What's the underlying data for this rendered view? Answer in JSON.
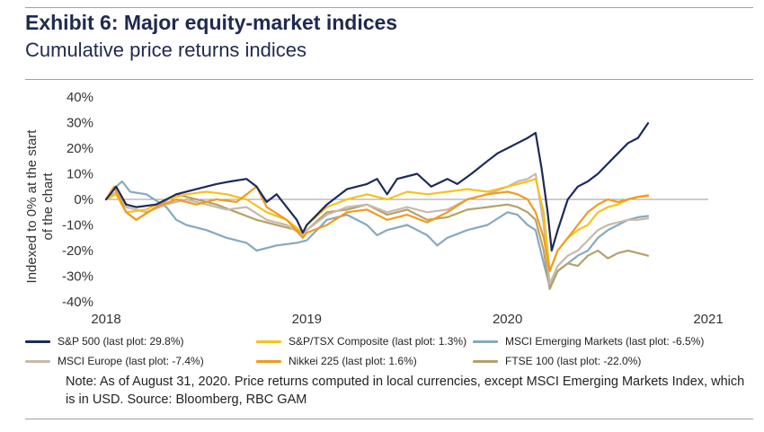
{
  "title": "Exhibit 6: Major equity-market indices",
  "subtitle": "Cumulative price returns indices",
  "note": "Note: As of August 31, 2020. Price returns computed in local currencies, except MSCI Emerging Markets Index, which is in USD. Source: Bloomberg, RBC GAM",
  "chart_data": {
    "type": "line",
    "title": "Exhibit 6: Major equity-market indices",
    "subtitle": "Cumulative price returns indices",
    "ylabel": "Indexed to 0% at the start of the chart",
    "xlabel": "",
    "x_ticks": [
      "2018",
      "2019",
      "2020",
      "2021"
    ],
    "y_ticks": [
      "40%",
      "30%",
      "20%",
      "10%",
      "0%",
      "-10%",
      "-20%",
      "-30%",
      "-40%"
    ],
    "xlim": [
      2018.0,
      2021.0
    ],
    "ylim": [
      -40,
      40
    ],
    "grid": false,
    "legend_position": "bottom",
    "series": [
      {
        "name": "S&P 500 (last plot: 29.8%)",
        "color": "#1d2a5c",
        "points": [
          [
            2018.0,
            0
          ],
          [
            2018.05,
            5
          ],
          [
            2018.1,
            -2
          ],
          [
            2018.15,
            -3
          ],
          [
            2018.25,
            -2
          ],
          [
            2018.35,
            2
          ],
          [
            2018.45,
            4
          ],
          [
            2018.55,
            6
          ],
          [
            2018.62,
            7
          ],
          [
            2018.7,
            8
          ],
          [
            2018.75,
            5
          ],
          [
            2018.8,
            -1
          ],
          [
            2018.85,
            2
          ],
          [
            2018.9,
            -3
          ],
          [
            2018.95,
            -8
          ],
          [
            2018.98,
            -13
          ],
          [
            2019.0,
            -10
          ],
          [
            2019.1,
            -2
          ],
          [
            2019.2,
            4
          ],
          [
            2019.3,
            6
          ],
          [
            2019.35,
            8
          ],
          [
            2019.4,
            2
          ],
          [
            2019.45,
            8
          ],
          [
            2019.55,
            10
          ],
          [
            2019.62,
            5
          ],
          [
            2019.7,
            8
          ],
          [
            2019.75,
            6
          ],
          [
            2019.82,
            10
          ],
          [
            2019.9,
            15
          ],
          [
            2019.95,
            18
          ],
          [
            2020.0,
            20
          ],
          [
            2020.05,
            22
          ],
          [
            2020.1,
            24
          ],
          [
            2020.14,
            26
          ],
          [
            2020.17,
            12
          ],
          [
            2020.2,
            -5
          ],
          [
            2020.22,
            -20
          ],
          [
            2020.25,
            -12
          ],
          [
            2020.3,
            0
          ],
          [
            2020.35,
            5
          ],
          [
            2020.4,
            7
          ],
          [
            2020.45,
            10
          ],
          [
            2020.5,
            14
          ],
          [
            2020.55,
            18
          ],
          [
            2020.6,
            22
          ],
          [
            2020.65,
            24
          ],
          [
            2020.7,
            29.8
          ]
        ]
      },
      {
        "name": "S&P/TSX Composite (last plot: 1.3%)",
        "color": "#f7c21a",
        "points": [
          [
            2018.0,
            0
          ],
          [
            2018.05,
            2
          ],
          [
            2018.1,
            -5
          ],
          [
            2018.2,
            -4
          ],
          [
            2018.3,
            0
          ],
          [
            2018.4,
            2
          ],
          [
            2018.5,
            3
          ],
          [
            2018.6,
            2
          ],
          [
            2018.7,
            0
          ],
          [
            2018.8,
            -5
          ],
          [
            2018.9,
            -8
          ],
          [
            2018.98,
            -13
          ],
          [
            2019.0,
            -10
          ],
          [
            2019.1,
            -3
          ],
          [
            2019.2,
            0
          ],
          [
            2019.3,
            2
          ],
          [
            2019.4,
            0
          ],
          [
            2019.5,
            3
          ],
          [
            2019.6,
            2
          ],
          [
            2019.7,
            3
          ],
          [
            2019.8,
            4
          ],
          [
            2019.9,
            3
          ],
          [
            2020.0,
            5
          ],
          [
            2020.1,
            7
          ],
          [
            2020.14,
            8
          ],
          [
            2020.18,
            -5
          ],
          [
            2020.21,
            -28
          ],
          [
            2020.25,
            -20
          ],
          [
            2020.3,
            -15
          ],
          [
            2020.35,
            -12
          ],
          [
            2020.4,
            -10
          ],
          [
            2020.45,
            -5
          ],
          [
            2020.5,
            -3
          ],
          [
            2020.55,
            -2
          ],
          [
            2020.6,
            0
          ],
          [
            2020.65,
            1
          ],
          [
            2020.7,
            1.3
          ]
        ]
      },
      {
        "name": "MSCI Emerging Markets (last plot: -6.5%)",
        "color": "#86a9c0",
        "points": [
          [
            2018.0,
            0
          ],
          [
            2018.05,
            5
          ],
          [
            2018.08,
            7
          ],
          [
            2018.12,
            3
          ],
          [
            2018.2,
            2
          ],
          [
            2018.3,
            -3
          ],
          [
            2018.35,
            -8
          ],
          [
            2018.4,
            -10
          ],
          [
            2018.5,
            -12
          ],
          [
            2018.6,
            -15
          ],
          [
            2018.7,
            -17
          ],
          [
            2018.75,
            -20
          ],
          [
            2018.85,
            -18
          ],
          [
            2018.95,
            -17
          ],
          [
            2019.0,
            -16
          ],
          [
            2019.1,
            -8
          ],
          [
            2019.2,
            -6
          ],
          [
            2019.3,
            -10
          ],
          [
            2019.35,
            -14
          ],
          [
            2019.4,
            -12
          ],
          [
            2019.5,
            -10
          ],
          [
            2019.6,
            -14
          ],
          [
            2019.65,
            -18
          ],
          [
            2019.7,
            -15
          ],
          [
            2019.8,
            -12
          ],
          [
            2019.9,
            -10
          ],
          [
            2020.0,
            -5
          ],
          [
            2020.05,
            -6
          ],
          [
            2020.1,
            -10
          ],
          [
            2020.14,
            -12
          ],
          [
            2020.18,
            -25
          ],
          [
            2020.21,
            -34
          ],
          [
            2020.25,
            -28
          ],
          [
            2020.3,
            -25
          ],
          [
            2020.35,
            -22
          ],
          [
            2020.4,
            -20
          ],
          [
            2020.45,
            -15
          ],
          [
            2020.5,
            -12
          ],
          [
            2020.55,
            -10
          ],
          [
            2020.6,
            -8
          ],
          [
            2020.65,
            -7
          ],
          [
            2020.7,
            -6.5
          ]
        ]
      },
      {
        "name": "MSCI Europe (last plot: -7.4%)",
        "color": "#c9b9ab",
        "points": [
          [
            2018.0,
            0
          ],
          [
            2018.05,
            3
          ],
          [
            2018.1,
            -3
          ],
          [
            2018.2,
            -5
          ],
          [
            2018.3,
            -2
          ],
          [
            2018.4,
            0
          ],
          [
            2018.5,
            -2
          ],
          [
            2018.6,
            -4
          ],
          [
            2018.7,
            -3
          ],
          [
            2018.8,
            -8
          ],
          [
            2018.9,
            -10
          ],
          [
            2018.98,
            -14
          ],
          [
            2019.0,
            -12
          ],
          [
            2019.1,
            -6
          ],
          [
            2019.2,
            -3
          ],
          [
            2019.3,
            -2
          ],
          [
            2019.4,
            -5
          ],
          [
            2019.5,
            -3
          ],
          [
            2019.6,
            -5
          ],
          [
            2019.7,
            -4
          ],
          [
            2019.8,
            0
          ],
          [
            2019.9,
            2
          ],
          [
            2020.0,
            5
          ],
          [
            2020.05,
            7
          ],
          [
            2020.1,
            8
          ],
          [
            2020.14,
            10
          ],
          [
            2020.18,
            -10
          ],
          [
            2020.21,
            -33
          ],
          [
            2020.25,
            -26
          ],
          [
            2020.3,
            -22
          ],
          [
            2020.35,
            -20
          ],
          [
            2020.4,
            -16
          ],
          [
            2020.45,
            -12
          ],
          [
            2020.5,
            -10
          ],
          [
            2020.55,
            -9
          ],
          [
            2020.6,
            -8
          ],
          [
            2020.65,
            -8
          ],
          [
            2020.7,
            -7.4
          ]
        ]
      },
      {
        "name": "Nikkei 225 (last plot: 1.6%)",
        "color": "#f29b1d",
        "points": [
          [
            2018.0,
            0
          ],
          [
            2018.04,
            5
          ],
          [
            2018.1,
            -5
          ],
          [
            2018.15,
            -8
          ],
          [
            2018.25,
            -3
          ],
          [
            2018.35,
            0
          ],
          [
            2018.45,
            -2
          ],
          [
            2018.55,
            0
          ],
          [
            2018.65,
            -1
          ],
          [
            2018.75,
            5
          ],
          [
            2018.8,
            -3
          ],
          [
            2018.9,
            -8
          ],
          [
            2018.98,
            -15
          ],
          [
            2019.0,
            -13
          ],
          [
            2019.1,
            -10
          ],
          [
            2019.2,
            -5
          ],
          [
            2019.3,
            -4
          ],
          [
            2019.4,
            -8
          ],
          [
            2019.5,
            -6
          ],
          [
            2019.6,
            -9
          ],
          [
            2019.7,
            -5
          ],
          [
            2019.8,
            0
          ],
          [
            2019.9,
            2
          ],
          [
            2020.0,
            3
          ],
          [
            2020.05,
            2
          ],
          [
            2020.1,
            0
          ],
          [
            2020.14,
            -5
          ],
          [
            2020.18,
            -15
          ],
          [
            2020.21,
            -28
          ],
          [
            2020.25,
            -20
          ],
          [
            2020.3,
            -15
          ],
          [
            2020.35,
            -10
          ],
          [
            2020.4,
            -5
          ],
          [
            2020.45,
            -2
          ],
          [
            2020.5,
            0
          ],
          [
            2020.55,
            -1
          ],
          [
            2020.6,
            0
          ],
          [
            2020.65,
            1
          ],
          [
            2020.7,
            1.6
          ]
        ]
      },
      {
        "name": "FTSE 100 (last plot: -22.0%)",
        "color": "#b5a26a",
        "points": [
          [
            2018.0,
            0
          ],
          [
            2018.05,
            2
          ],
          [
            2018.1,
            -5
          ],
          [
            2018.15,
            -8
          ],
          [
            2018.25,
            -3
          ],
          [
            2018.35,
            2
          ],
          [
            2018.45,
            0
          ],
          [
            2018.55,
            -2
          ],
          [
            2018.65,
            -5
          ],
          [
            2018.75,
            -8
          ],
          [
            2018.85,
            -10
          ],
          [
            2018.95,
            -12
          ],
          [
            2018.98,
            -14
          ],
          [
            2019.0,
            -12
          ],
          [
            2019.1,
            -5
          ],
          [
            2019.2,
            -4
          ],
          [
            2019.3,
            -2
          ],
          [
            2019.4,
            -6
          ],
          [
            2019.5,
            -4
          ],
          [
            2019.6,
            -8
          ],
          [
            2019.7,
            -7
          ],
          [
            2019.8,
            -4
          ],
          [
            2019.9,
            -3
          ],
          [
            2020.0,
            -2
          ],
          [
            2020.05,
            -3
          ],
          [
            2020.1,
            -5
          ],
          [
            2020.14,
            -8
          ],
          [
            2020.18,
            -20
          ],
          [
            2020.21,
            -35
          ],
          [
            2020.25,
            -28
          ],
          [
            2020.3,
            -25
          ],
          [
            2020.35,
            -26
          ],
          [
            2020.4,
            -22
          ],
          [
            2020.45,
            -20
          ],
          [
            2020.5,
            -23
          ],
          [
            2020.55,
            -21
          ],
          [
            2020.6,
            -20
          ],
          [
            2020.65,
            -21
          ],
          [
            2020.7,
            -22.0
          ]
        ]
      }
    ]
  }
}
